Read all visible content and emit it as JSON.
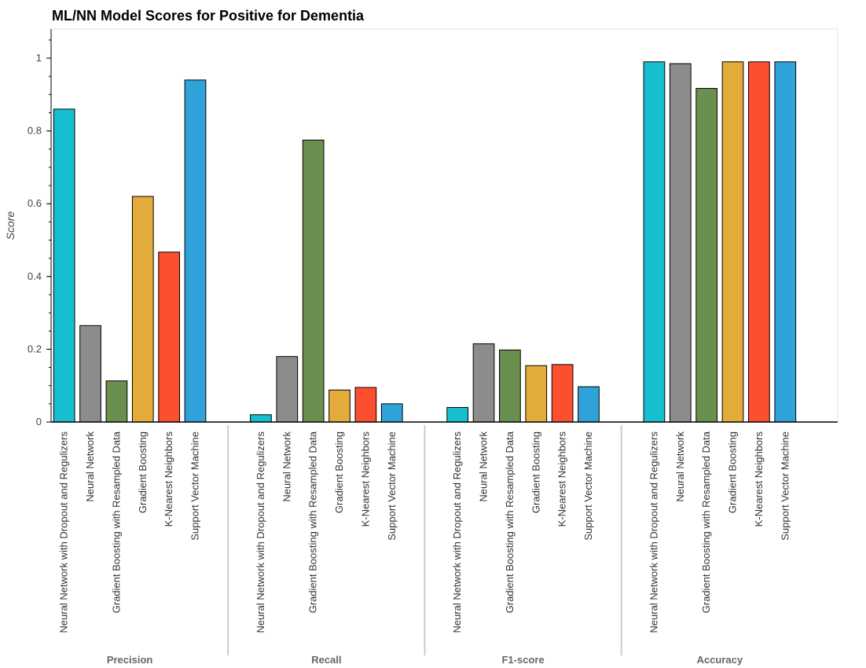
{
  "chart_data": {
    "type": "bar",
    "title": "ML/NN Model Scores for Positive for Dementia",
    "xlabel": "",
    "ylabel": "Score",
    "ylim": [
      0,
      1.08
    ],
    "yticks": [
      "0",
      "0.2",
      "0.4",
      "0.6",
      "0.8",
      "1"
    ],
    "groups": [
      "Precision",
      "Recall",
      "F1-score",
      "Accuracy"
    ],
    "categories": [
      "Neural Network with Dropout and Regulizers",
      "Neural Network",
      "Gradient Boosting with Resampled Data",
      "Gradient Boosting",
      "K-Nearest Neighbors",
      "Support Vector Machine"
    ],
    "colors": [
      "#17becf",
      "#8c8c8c",
      "#6a8f4f",
      "#e3ab3a",
      "#fc4f30",
      "#30a2da"
    ],
    "values": {
      "Precision": [
        0.86,
        0.265,
        0.113,
        0.62,
        0.467,
        0.94
      ],
      "Recall": [
        0.02,
        0.18,
        0.775,
        0.088,
        0.095,
        0.05
      ],
      "F1-score": [
        0.04,
        0.215,
        0.198,
        0.155,
        0.158,
        0.097
      ],
      "Accuracy": [
        0.99,
        0.985,
        0.917,
        0.99,
        0.99,
        0.99
      ]
    },
    "grid": false,
    "legend": "none"
  }
}
